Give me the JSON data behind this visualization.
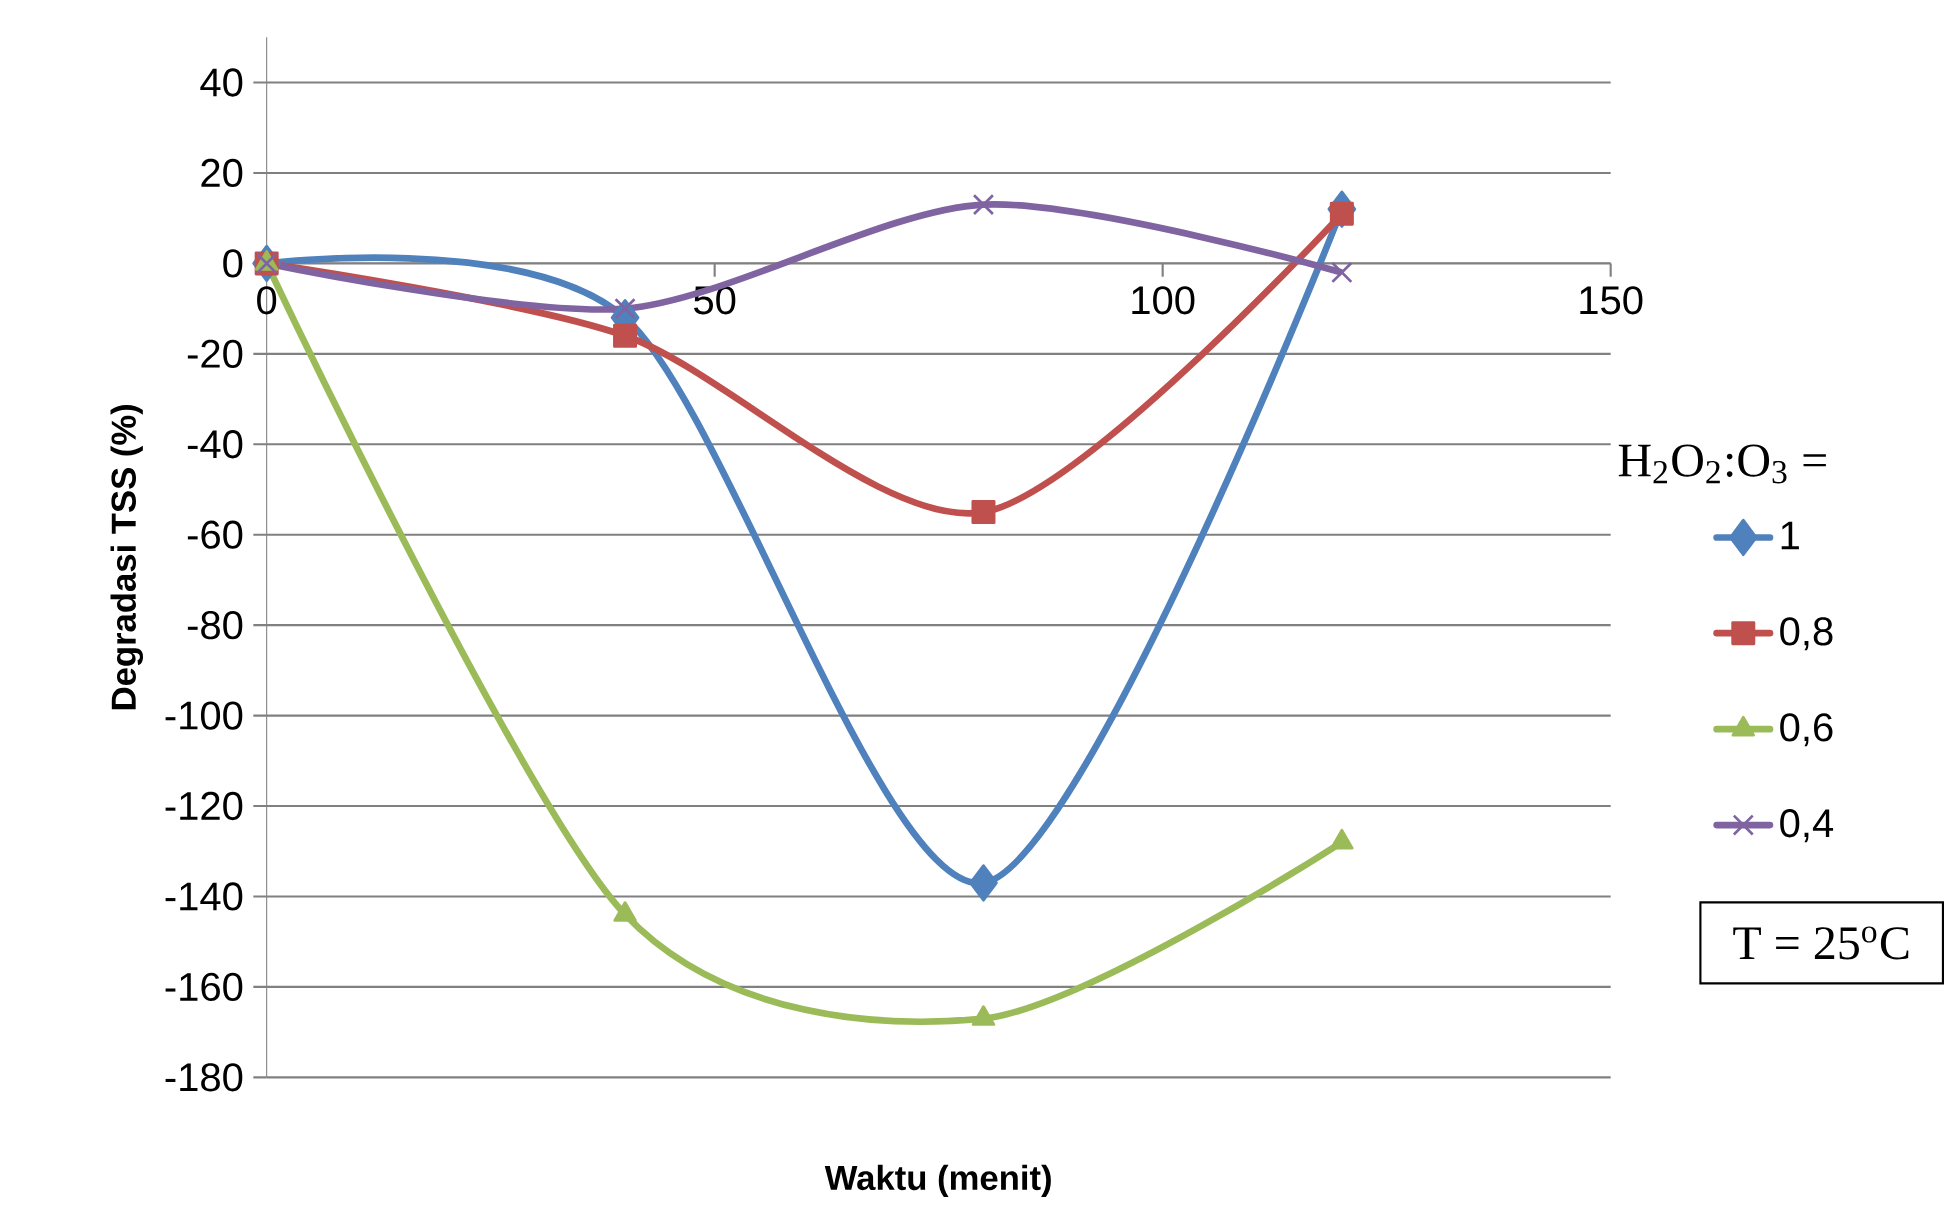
{
  "chart_data": {
    "type": "line",
    "xlabel": "Waktu (menit)",
    "ylabel": "Degradasi TSS (%)",
    "legend_title": "H$_{2}$O$_{2}$:O$_{3}$ =",
    "x": [
      0,
      40,
      80,
      120
    ],
    "series": [
      {
        "name": "1",
        "color": "#4f81bd",
        "marker": "diamond",
        "values": [
          0,
          -12,
          -137,
          12
        ]
      },
      {
        "name": "0,8",
        "color": "#c0504d",
        "marker": "square",
        "values": [
          0,
          -16,
          -55,
          11
        ]
      },
      {
        "name": "0,6",
        "color": "#9bbb59",
        "marker": "triangle",
        "values": [
          0,
          -144,
          -167,
          -128
        ]
      },
      {
        "name": "0,4",
        "color": "#8064a2",
        "marker": "cross",
        "values": [
          0,
          -10,
          13,
          -2
        ]
      }
    ],
    "xlim": [
      0,
      150
    ],
    "ylim": [
      -180,
      50
    ],
    "xticks": [
      0,
      50,
      100,
      150
    ],
    "yticks": [
      -180,
      -160,
      -140,
      -120,
      -100,
      -80,
      -60,
      -40,
      -20,
      0,
      20,
      40
    ],
    "grid": "y",
    "legend": "right",
    "annotations": [
      "T = 25$^{o}$C"
    ]
  }
}
